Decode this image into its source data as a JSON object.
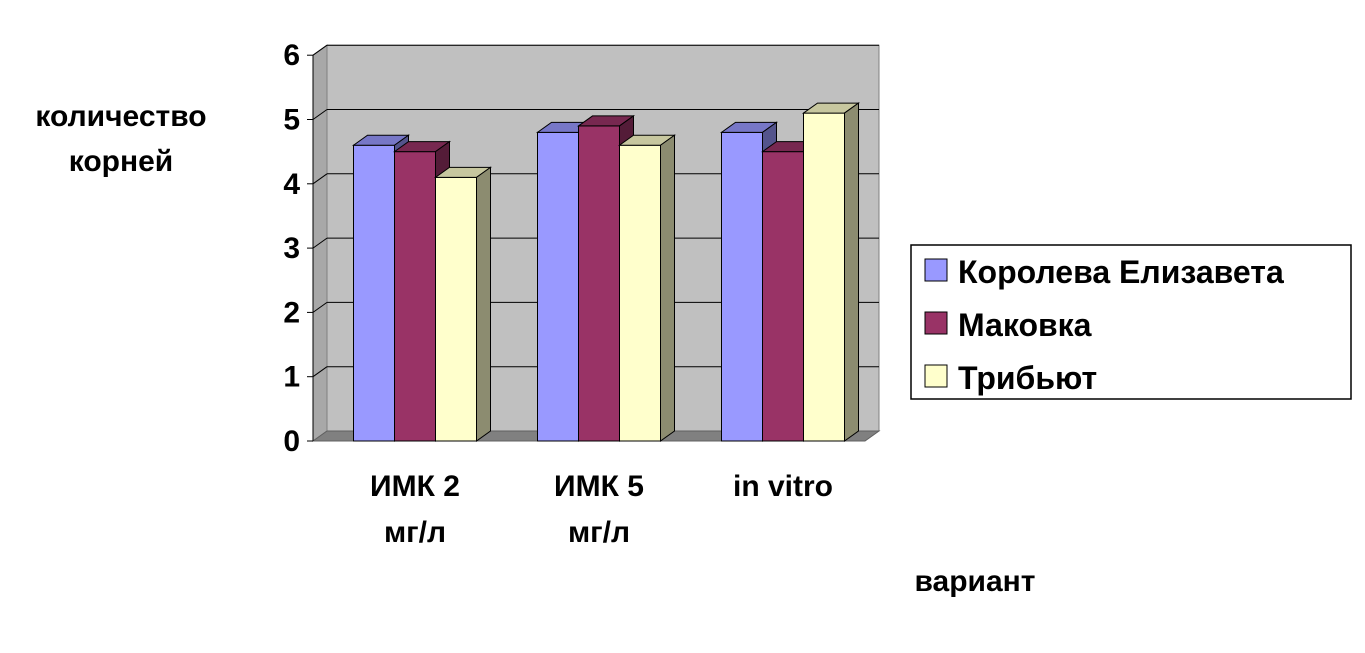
{
  "chart_data": {
    "type": "bar",
    "style": "3d-clustered-column",
    "title": "",
    "ylabel_lines": [
      "количество",
      "корней"
    ],
    "xlabel": "вариант",
    "ylim": [
      0,
      6
    ],
    "yticks": [
      "0",
      "1",
      "2",
      "3",
      "4",
      "5",
      "6"
    ],
    "grid": true,
    "legend_position": "right",
    "categories": [
      [
        "ИМК 2",
        "мг/л"
      ],
      [
        "ИМК 5",
        "мг/л"
      ],
      [
        "in vitro"
      ]
    ],
    "series": [
      {
        "name": "Королева Елизавета",
        "color": "#9999ff",
        "values": [
          4.6,
          4.8,
          4.8
        ]
      },
      {
        "name": "Маковка",
        "color": "#993366",
        "values": [
          4.5,
          4.9,
          4.5
        ]
      },
      {
        "name": "Трибьют",
        "color": "#ffffcc",
        "values": [
          4.1,
          4.6,
          5.1
        ]
      }
    ],
    "colors": {
      "plot_wall": "#c0c0c0",
      "floor": "#808080",
      "gridline": "#000000"
    }
  }
}
